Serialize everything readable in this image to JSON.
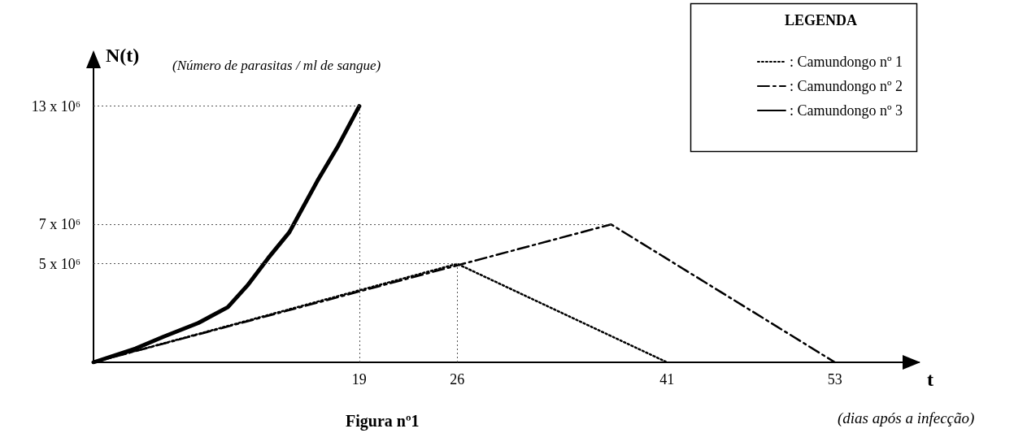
{
  "chart_data": {
    "type": "line",
    "title": "Figura nº1",
    "xlabel": "t",
    "ylabel": "N(t)",
    "legend_title": "LEGENDA",
    "annotations": [
      "(Número de parasitas / ml de sangue)",
      "(dias após a infecção)"
    ],
    "xlim": [
      0,
      59
    ],
    "xticks": [
      19,
      26,
      41,
      53
    ],
    "ylim": [
      0,
      15500000
    ],
    "yticks": [
      {
        "value": 5000000,
        "label": "5 x 10⁶"
      },
      {
        "value": 7000000,
        "label": "7 x 10⁶"
      },
      {
        "value": 13000000,
        "label": "13 x 10⁶"
      }
    ],
    "series": [
      {
        "name": ": Camundongo nº 1",
        "color": "#000000",
        "line_style": "dotted",
        "x": [
          0,
          26,
          41
        ],
        "values": [
          0,
          5000000,
          0
        ]
      },
      {
        "name": ": Camundongo nº 2",
        "color": "#000000",
        "line_style": "dashed",
        "x": [
          0,
          37,
          53
        ],
        "values": [
          0,
          7000000,
          0
        ]
      },
      {
        "name": ": Camundongo nº 3",
        "color": "#000000",
        "line_style": "solid",
        "x": [
          0,
          3,
          5,
          7.5,
          9.6,
          11,
          12.5,
          14,
          16,
          17.5,
          19
        ],
        "values": [
          0,
          700000,
          1300000,
          2000000,
          2800000,
          3900000,
          5300000,
          6600000,
          9200000,
          11000000,
          13000000
        ]
      }
    ],
    "ref_lines": [
      {
        "axis": "y",
        "value": 5000000,
        "color": "#555555",
        "line_style": "dotted"
      },
      {
        "axis": "y",
        "value": 7000000,
        "color": "#555555",
        "line_style": "dotted"
      },
      {
        "axis": "y",
        "value": 13000000,
        "color": "#555555",
        "line_style": "dotted"
      },
      {
        "axis": "x",
        "value": 19,
        "color": "#555555",
        "line_style": "dotted"
      },
      {
        "axis": "x",
        "value": 26,
        "color": "#555555",
        "line_style": "dotted"
      }
    ],
    "grid": false,
    "legend": "top right",
    "marker": "none"
  }
}
